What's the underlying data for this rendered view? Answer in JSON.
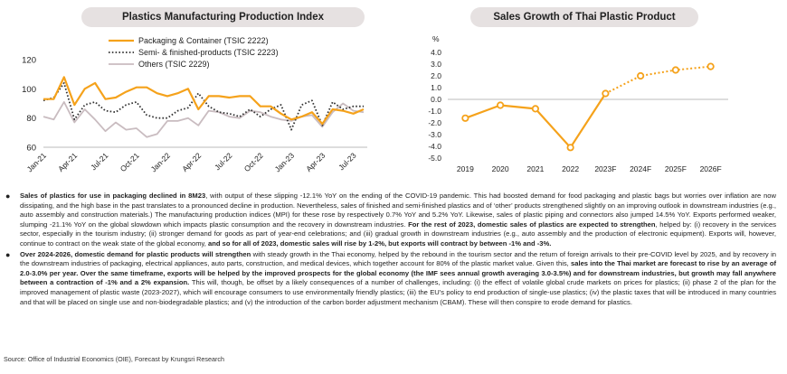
{
  "left_chart_title": "Plastics Manufacturing Production Index",
  "right_chart_title": "Sales Growth of Thai Plastic Product",
  "chart_data": [
    {
      "type": "line",
      "title": "Plastics Manufacturing Production Index",
      "x": [
        "Jan-21",
        "Feb-21",
        "Mar-21",
        "Apr-21",
        "May-21",
        "Jun-21",
        "Jul-21",
        "Aug-21",
        "Sep-21",
        "Oct-21",
        "Nov-21",
        "Dec-21",
        "Jan-22",
        "Feb-22",
        "Mar-22",
        "Apr-22",
        "May-22",
        "Jun-22",
        "Jul-22",
        "Aug-22",
        "Sep-22",
        "Oct-22",
        "Nov-22",
        "Dec-22",
        "Jan-23",
        "Feb-23",
        "Mar-23",
        "Apr-23",
        "May-23",
        "Jun-23",
        "Jul-23",
        "Aug-23"
      ],
      "x_tick_labels": [
        "Jan-21",
        "Apr-21",
        "Jul-21",
        "Oct-21",
        "Jan-22",
        "Apr-22",
        "Jul-22",
        "Oct-22",
        "Jan-23",
        "Apr-23",
        "Jul-23"
      ],
      "y_ticks": [
        60,
        80,
        100,
        120
      ],
      "ylim": [
        60,
        120
      ],
      "legend_position": "top-left",
      "series": [
        {
          "name": "Packaging & Container (TSIC 2222)",
          "color": "#f5a21b",
          "style": "solid",
          "values": [
            93,
            93,
            108,
            89,
            100,
            104,
            93,
            94,
            98,
            101,
            101,
            97,
            95,
            97,
            100,
            86,
            95,
            95,
            94,
            95,
            95,
            88,
            88,
            83,
            79,
            81,
            84,
            76,
            86,
            85,
            83,
            86
          ]
        },
        {
          "name": "Semi- & finished-products (TSIC 2223)",
          "color": "#333333",
          "style": "dotted",
          "values": [
            92,
            94,
            104,
            79,
            89,
            91,
            85,
            84,
            89,
            91,
            82,
            80,
            80,
            85,
            87,
            97,
            88,
            84,
            83,
            81,
            86,
            81,
            86,
            89,
            72,
            89,
            92,
            75,
            91,
            86,
            88,
            88
          ]
        },
        {
          "name": "Others (TSIC 2229)",
          "color": "#c9bcc0",
          "style": "solid",
          "values": [
            81,
            79,
            91,
            77,
            86,
            79,
            71,
            77,
            72,
            73,
            67,
            69,
            78,
            78,
            80,
            75,
            85,
            84,
            81,
            80,
            85,
            84,
            81,
            79,
            78,
            81,
            82,
            74,
            84,
            90,
            85,
            84
          ]
        }
      ]
    },
    {
      "type": "line",
      "title": "Sales Growth of Thai Plastic Product",
      "ylabel": "%",
      "categories": [
        "2019",
        "2020",
        "2021",
        "2022",
        "2023F",
        "2024F",
        "2025F",
        "2026F"
      ],
      "y_tick_labels": [
        "4.0",
        "3.0",
        "2.0",
        "1.0",
        "0.0",
        "-1.0",
        "-2.0",
        "-3.0",
        "-4.0",
        "-5.0"
      ],
      "ylim": [
        -5,
        4
      ],
      "color": "#f5a21b",
      "values": [
        -1.6,
        -0.5,
        -0.8,
        -4.1,
        0.5,
        2.0,
        2.5,
        2.8
      ],
      "forecast_from_index": 4
    }
  ],
  "bullets": [
    {
      "parts": [
        {
          "b": true,
          "t": "Sales of plastics for use in packaging declined in 8M23"
        },
        {
          "b": false,
          "t": ", with output of these slipping -12.1% YoY on the ending of the COVID-19 pandemic. This had boosted demand for food packaging and plastic bags but worries over inflation are now dissipating, and the high base in the past translates to a pronounced decline in production. Nevertheless, sales of finished and semi-finished plastics and of ‘other’ products strengthened slightly on an improving outlook in downstream industries (e.g., auto assembly and construction materials.) The manufacturing production indices (MPI) for these rose by respectively 0.7% YoY and 5.2% YoY. Likewise, sales of plastic piping and connectors also jumped 14.5% YoY. Exports performed weaker, slumping -21.1% YoY on the global slowdown which impacts plastic consumption and the recovery in downstream industries. "
        },
        {
          "b": true,
          "t": "For the rest of 2023, domestic sales of plastics are expected to strengthen"
        },
        {
          "b": false,
          "t": ", helped by: (i) recovery in the services sector, especially in the tourism industry; (ii) stronger demand for goods as part of year-end celebrations; and (iii) gradual growth in downstream industries (e.g., auto assembly and the production of electronic equipment). Exports will, however, continue to contract on the weak state of the global economy, "
        },
        {
          "b": true,
          "t": "and so for all of 2023, domestic sales will rise by 1-2%, but exports will contract by between -1% and -3%."
        }
      ]
    },
    {
      "parts": [
        {
          "b": true,
          "t": "Over 2024-2026, domestic demand for plastic products will strengthen"
        },
        {
          "b": false,
          "t": " with steady growth in the Thai economy, helped by the rebound in the tourism sector and the return of foreign arrivals to their pre-COVID level by 2025, and by recovery in the downstream industries of packaging, electrical appliances, auto parts, construction, and medical devices, which together account for 80% of the plastic market value. Given this, "
        },
        {
          "b": true,
          "t": "sales into the Thai market are forecast to rise by an average of 2.0-3.0% per year. Over the same timeframe, exports will be helped by the improved prospects for the global economy (the IMF sees annual growth averaging 3.0-3.5%) and for downstream industries, but growth may fall anywhere between a contraction of -1% and a 2% expansion."
        },
        {
          "b": false,
          "t": " This will, though, be offset by a likely consequences of a number of challenges, including: (i) the effect of volatile global crude markets on prices for plastics; (ii) phase 2 of the plan for the improved management of plastic waste (2023-2027), which will encourage consumers to use environmentally friendly plastics; (iii) the EU’s policy to end production of single-use plastics; (iv) the plastic taxes that will be introduced in many countries and that will be placed on single use and non-biodegradable plastics; and (v) the introduction of the carbon border adjustment mechanism (CBAM). These will then conspire to erode demand for plastics."
        }
      ]
    }
  ],
  "source": "Source: Office of Industrial Economics (OIE), Forecast by Krungsri Research"
}
